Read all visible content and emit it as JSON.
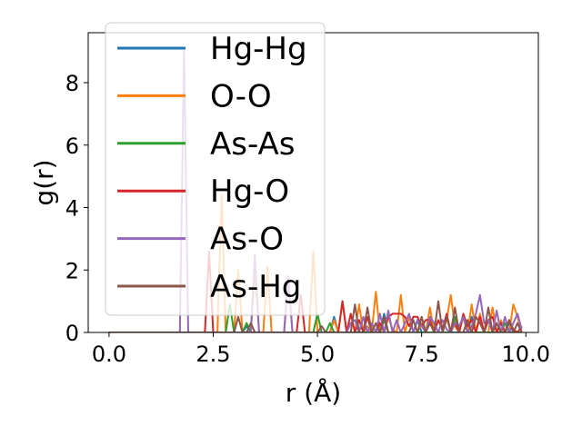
{
  "chart_data": {
    "type": "line",
    "xlabel": "r (Å)",
    "ylabel": "g(r)",
    "xlim": [
      -0.5,
      10.3
    ],
    "ylim": [
      0,
      9.6
    ],
    "xticks": [
      0.0,
      2.5,
      5.0,
      7.5,
      10.0
    ],
    "xtick_labels": [
      "0.0",
      "2.5",
      "5.0",
      "7.5",
      "10.0"
    ],
    "yticks": [
      0,
      2,
      4,
      6,
      8
    ],
    "ytick_labels": [
      "0",
      "2",
      "4",
      "6",
      "8"
    ],
    "grid": false,
    "legend_position": "upper-left",
    "series": [
      {
        "name": "Hg-Hg",
        "color": "#1f77b4",
        "x": [
          0,
          3.2,
          3.3,
          3.4,
          3.5,
          3.6,
          5.3,
          5.4,
          5.5,
          6.5,
          6.6,
          6.7,
          7.3,
          7.4,
          7.5,
          8.6,
          8.7,
          8.8,
          9.5,
          9.6,
          9.7,
          9.9
        ],
        "y": [
          0,
          0,
          0.2,
          0,
          0,
          0,
          0,
          0.5,
          0,
          0,
          0.6,
          0,
          0,
          0.4,
          0,
          0,
          0.5,
          0,
          0,
          0.3,
          0,
          0
        ]
      },
      {
        "name": "O-O",
        "color": "#ff7f0e",
        "x": [
          0,
          2.5,
          2.6,
          2.7,
          2.8,
          2.9,
          3.0,
          3.1,
          3.2,
          3.3,
          3.4,
          3.5,
          3.6,
          3.7,
          3.8,
          3.9,
          4.0,
          4.1,
          4.2,
          4.3,
          4.4,
          4.5,
          4.6,
          4.7,
          4.8,
          4.9,
          5.0,
          5.1,
          5.2,
          5.3,
          5.4,
          5.5,
          5.6,
          5.7,
          5.8,
          5.9,
          6.0,
          6.1,
          6.2,
          6.3,
          6.4,
          6.5,
          6.6,
          6.7,
          6.8,
          6.9,
          7.0,
          7.1,
          7.2,
          7.3,
          7.4,
          7.5,
          7.6,
          7.7,
          7.8,
          7.9,
          8.0,
          8.1,
          8.2,
          8.3,
          8.4,
          8.5,
          8.6,
          8.7,
          8.8,
          8.9,
          9.0,
          9.1,
          9.2,
          9.3,
          9.4,
          9.5,
          9.6,
          9.7,
          9.8,
          9.9
        ],
        "y": [
          0,
          0,
          0,
          4.4,
          0,
          0,
          0,
          2.0,
          0,
          0,
          0,
          2.0,
          0,
          0,
          2.1,
          0,
          0,
          0,
          0,
          1.8,
          0,
          0,
          0,
          0,
          0,
          2.6,
          0,
          0,
          0,
          0,
          0.4,
          0,
          1.0,
          0,
          0,
          0,
          0.9,
          0,
          0.2,
          0,
          1.3,
          0,
          0,
          0.5,
          0.1,
          0,
          1.2,
          0,
          0.5,
          0,
          0,
          0.3,
          0,
          0.8,
          0,
          0,
          0,
          0.4,
          1.2,
          0.2,
          0,
          0.5,
          0,
          0.9,
          0,
          0.6,
          0,
          0,
          0.8,
          0,
          0.4,
          0,
          0,
          0.9,
          0.5,
          0
        ]
      },
      {
        "name": "As-As",
        "color": "#2ca02c",
        "x": [
          0,
          2.8,
          2.9,
          3.0,
          3.2,
          3.3,
          3.4,
          4.9,
          5.0,
          5.1,
          5.2,
          5.3,
          5.4,
          6.5,
          6.6,
          6.7,
          8.2,
          8.3,
          8.4,
          9.4,
          9.5,
          9.6,
          9.9
        ],
        "y": [
          0,
          0,
          0.9,
          0,
          0,
          0.3,
          0,
          0,
          0.6,
          0,
          0,
          0.3,
          0,
          0,
          0.4,
          0,
          0,
          0.5,
          0,
          0,
          0.3,
          0,
          0
        ]
      },
      {
        "name": "Hg-O",
        "color": "#d62728",
        "x": [
          0,
          2.3,
          2.4,
          2.5,
          2.6,
          2.7,
          2.8,
          4.5,
          4.6,
          4.7,
          5.5,
          5.6,
          5.7,
          5.8,
          5.9,
          6.0,
          6.1,
          6.2,
          6.3,
          6.4,
          6.5,
          6.6,
          6.7,
          6.8,
          6.9,
          7.0,
          7.1,
          7.2,
          7.3,
          7.4,
          7.5,
          7.6,
          7.7,
          7.8,
          7.9,
          8.0,
          8.1,
          8.2,
          8.3,
          8.4,
          8.5,
          8.6,
          8.7,
          8.8,
          8.9,
          9.0,
          9.1,
          9.2,
          9.3,
          9.4,
          9.5,
          9.6,
          9.7,
          9.8,
          9.9
        ],
        "y": [
          0,
          0,
          2.6,
          0,
          0,
          0,
          0,
          0,
          1.2,
          0,
          0,
          1.0,
          0,
          0.6,
          0,
          0.4,
          0,
          0.5,
          0,
          0,
          0.3,
          0,
          0.5,
          0.6,
          0.6,
          0.6,
          0.5,
          0.2,
          0.5,
          0.5,
          0.2,
          0.4,
          0.4,
          0,
          0.4,
          0.1,
          0.6,
          0,
          0.3,
          0,
          0.6,
          0.2,
          0.4,
          0,
          0.5,
          0,
          0.4,
          0.5,
          0,
          0.3,
          0,
          0.4,
          0.1,
          0,
          0.2
        ]
      },
      {
        "name": "As-O",
        "color": "#9467bd",
        "x": [
          0,
          1.6,
          1.7,
          1.8,
          1.9,
          2.0,
          3.3,
          3.4,
          3.5,
          3.6,
          3.7,
          4.1,
          4.2,
          4.3,
          4.4,
          4.5,
          5.7,
          5.8,
          5.9,
          6.0,
          6.1,
          6.2,
          6.3,
          6.4,
          6.5,
          6.6,
          6.7,
          6.8,
          6.9,
          7.0,
          7.1,
          7.2,
          7.3,
          7.4,
          7.5,
          7.6,
          7.7,
          7.8,
          7.9,
          8.0,
          8.1,
          8.2,
          8.3,
          8.4,
          8.5,
          8.6,
          8.7,
          8.8,
          8.9,
          9.0,
          9.1,
          9.2,
          9.3,
          9.4,
          9.5,
          9.6,
          9.7,
          9.8,
          9.9
        ],
        "y": [
          0,
          0,
          0,
          9.1,
          0,
          0,
          0,
          0,
          2.5,
          0,
          0,
          0,
          0,
          1.8,
          0,
          0,
          0,
          0.3,
          0.4,
          0,
          0.5,
          0,
          0.3,
          0,
          0.6,
          0,
          0.7,
          0,
          0.4,
          0,
          0.3,
          0.6,
          0,
          0.4,
          0.2,
          0,
          0.5,
          0.3,
          0,
          0.4,
          0.1,
          0,
          0.3,
          0.2,
          0.5,
          0,
          0.2,
          0.6,
          1.2,
          0.3,
          0.4,
          0,
          0.7,
          0,
          0.5,
          0,
          0.3,
          0.6,
          0.1
        ]
      },
      {
        "name": "As-Hg",
        "color": "#8c564b",
        "x": [
          0,
          3.0,
          3.1,
          3.2,
          3.3,
          3.4,
          3.5,
          5.0,
          5.1,
          5.2,
          5.3,
          5.8,
          5.9,
          6.0,
          6.1,
          6.2,
          6.3,
          6.4,
          6.5,
          6.6,
          6.7,
          6.8,
          7.2,
          7.3,
          7.4,
          7.5,
          7.6,
          7.7,
          7.8,
          7.9,
          8.0,
          8.1,
          8.2,
          8.3,
          8.4,
          8.5,
          8.6,
          8.7,
          8.8,
          8.9,
          9.0,
          9.1,
          9.2,
          9.3,
          9.4,
          9.5,
          9.6,
          9.7,
          9.8,
          9.9
        ],
        "y": [
          0,
          0,
          0.5,
          0,
          0,
          0.3,
          0,
          0,
          0.2,
          0,
          0,
          0,
          0.9,
          0,
          0,
          0.8,
          0,
          0.3,
          0,
          0.5,
          0,
          0,
          0,
          0.4,
          0,
          0.5,
          0,
          0.3,
          0,
          1.0,
          0,
          0.5,
          0,
          0.8,
          0,
          0,
          0.4,
          0,
          0.5,
          0.3,
          0,
          0.8,
          0,
          0.3,
          0,
          0,
          0.4,
          0,
          0.3,
          0
        ]
      }
    ]
  }
}
